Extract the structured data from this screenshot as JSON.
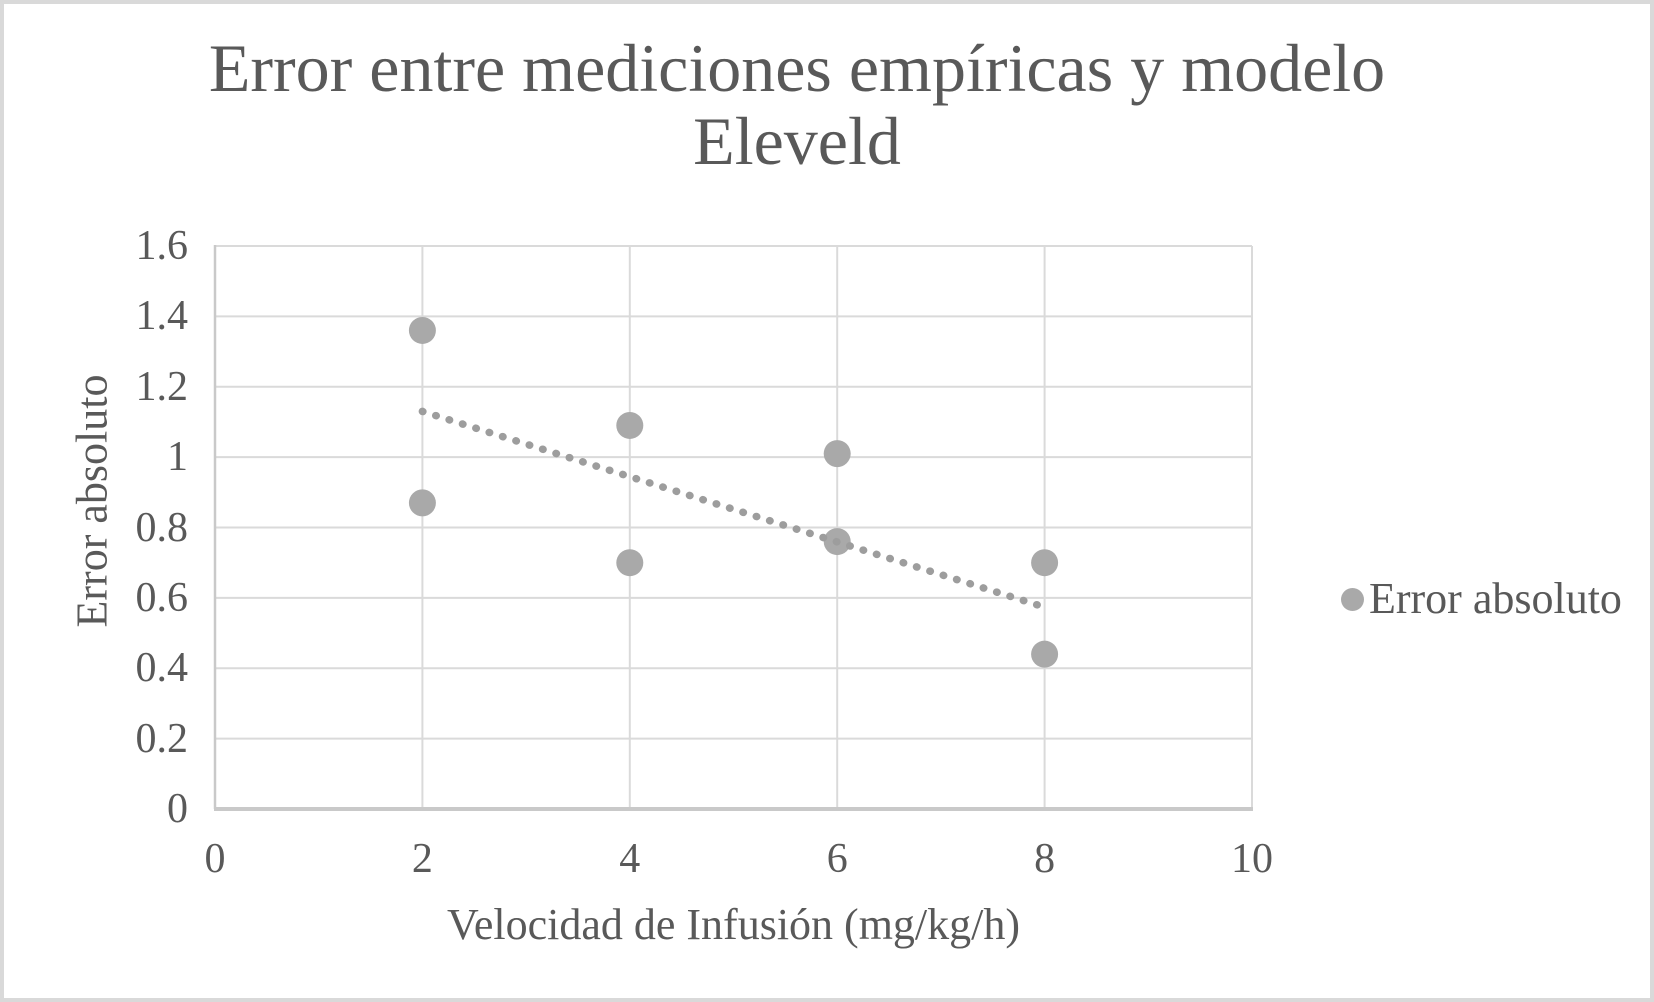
{
  "chart_data": {
    "type": "scatter",
    "title": "Error entre mediciones empíricas y modelo Eleveld",
    "title_lines": [
      "Error entre mediciones empíricas y modelo",
      "Eleveld"
    ],
    "xlabel": "Velocidad de Infusión (mg/kg/h)",
    "ylabel": "Error absoluto",
    "xlim": [
      0,
      10
    ],
    "ylim": [
      0,
      1.6
    ],
    "x_ticks": [
      0,
      2,
      4,
      6,
      8,
      10
    ],
    "x_tick_labels": [
      "0",
      "2",
      "4",
      "6",
      "8",
      "10"
    ],
    "y_ticks": [
      0,
      0.2,
      0.4,
      0.6,
      0.8,
      1,
      1.2,
      1.4,
      1.6
    ],
    "y_tick_labels": [
      "0",
      "0.2",
      "0.4",
      "0.6",
      "0.8",
      "1",
      "1.2",
      "1.4",
      "1.6"
    ],
    "grid": true,
    "legend": {
      "position": "right",
      "entries": [
        {
          "label": "Error absoluto",
          "marker_color": "#a9a9a9"
        }
      ]
    },
    "series": [
      {
        "name": "Error absoluto",
        "marker": "circle",
        "marker_color": "#a9a9a9",
        "points": [
          {
            "x": 2,
            "y": 1.36
          },
          {
            "x": 2,
            "y": 0.87
          },
          {
            "x": 4,
            "y": 1.09
          },
          {
            "x": 4,
            "y": 0.7
          },
          {
            "x": 6,
            "y": 1.01
          },
          {
            "x": 6,
            "y": 0.76
          },
          {
            "x": 8,
            "y": 0.7
          },
          {
            "x": 8,
            "y": 0.44
          }
        ]
      }
    ],
    "trendline": {
      "style": "dotted",
      "color": "#9d9d9d",
      "x1": 2,
      "y1": 1.13,
      "x2": 7.93,
      "y2": 0.58
    }
  },
  "colors": {
    "text": "#595959",
    "marker": "#a9a9a9",
    "trendline": "#9d9d9d",
    "gridline": "#dadada",
    "axis_line": "#c9c9c9",
    "frame_border": "#d9d9d9",
    "background": "#ffffff"
  }
}
